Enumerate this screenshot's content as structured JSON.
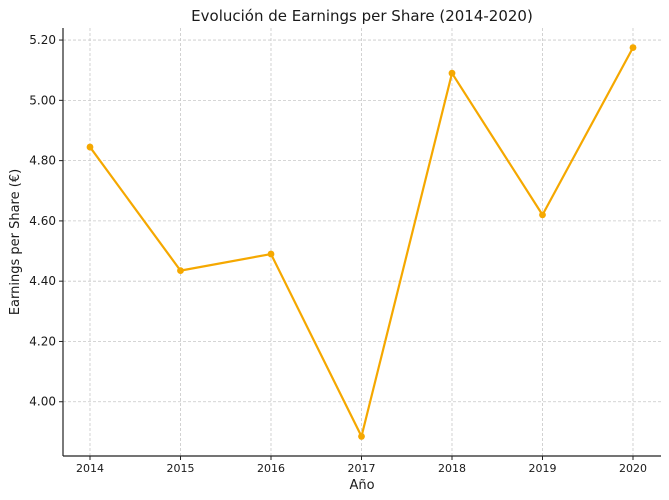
{
  "chart_data": {
    "type": "line",
    "title": "Evolución de Earnings per Share (2014-2020)",
    "xlabel": "Año",
    "ylabel": "Earnings per Share (€)",
    "categories": [
      "2014",
      "2015",
      "2016",
      "2017",
      "2018",
      "2019",
      "2020"
    ],
    "series": [
      {
        "values": [
          4.845,
          4.435,
          4.49,
          3.885,
          5.09,
          4.62,
          5.175
        ],
        "color": "#f5a800"
      }
    ],
    "yticks": [
      "4.00",
      "4.20",
      "4.40",
      "4.60",
      "4.80",
      "5.00",
      "5.20"
    ],
    "ylim": [
      3.82,
      5.24
    ],
    "grid": true,
    "legend": "none"
  }
}
